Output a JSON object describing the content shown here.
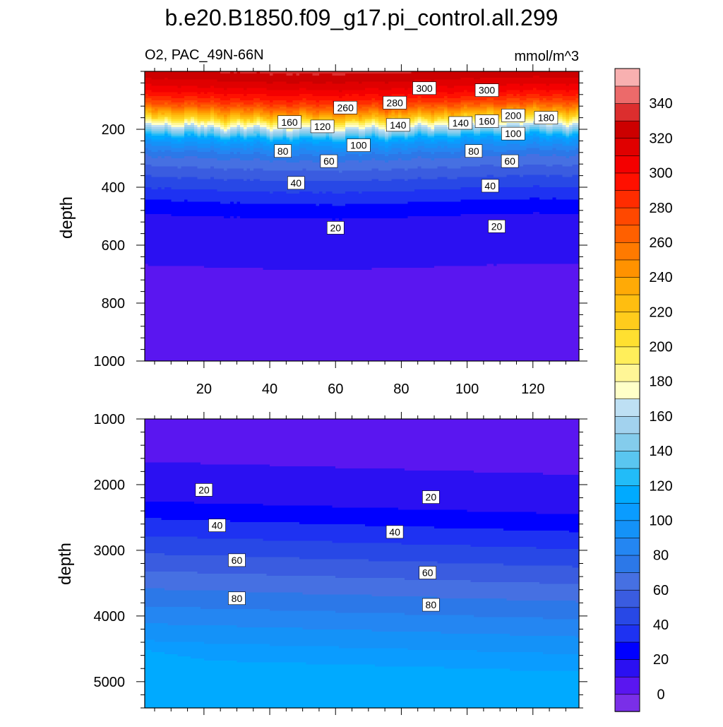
{
  "chart_data": {
    "type": "heatmap",
    "title": "b.e20.B1850.f09_g17.pi_control.all.299",
    "subtitle_left": "O2, PAC_49N-66N",
    "subtitle_right": "mmol/m^3",
    "xlabel": "",
    "ylabel": "depth",
    "x_range": [
      2,
      134
    ],
    "x_ticks": [
      20,
      40,
      60,
      80,
      100,
      120
    ],
    "grid": false,
    "legend": "right",
    "colorbar": {
      "levels": [
        -10,
        0,
        10,
        20,
        30,
        40,
        50,
        60,
        70,
        80,
        90,
        100,
        110,
        120,
        130,
        140,
        150,
        160,
        170,
        180,
        190,
        200,
        210,
        220,
        230,
        240,
        250,
        260,
        270,
        280,
        290,
        300,
        310,
        320,
        330,
        340,
        350,
        360
      ],
      "colors": [
        "#7a2fe8",
        "#5a16f0",
        "#2b10f2",
        "#0000ff",
        "#1e32f2",
        "#2848e6",
        "#3a5ce0",
        "#4670e2",
        "#2c78e8",
        "#2486f2",
        "#1492f8",
        "#0a9cff",
        "#00aaff",
        "#22bcf8",
        "#5ac6f0",
        "#84ccec",
        "#a2d2ee",
        "#bee0f4",
        "#ffffc8",
        "#fff696",
        "#ffee5a",
        "#ffe030",
        "#ffcc1c",
        "#ffbe10",
        "#ffaa06",
        "#ff9200",
        "#ff7a00",
        "#ff6000",
        "#ff4800",
        "#ff2c00",
        "#ff1000",
        "#f40000",
        "#e00000",
        "#cc0000",
        "#dc2e2e",
        "#ec6a6a",
        "#f8b0b0"
      ],
      "tick_labels": [
        "0",
        "20",
        "40",
        "60",
        "80",
        "100",
        "120",
        "140",
        "160",
        "180",
        "200",
        "220",
        "240",
        "260",
        "280",
        "300",
        "320",
        "340"
      ],
      "tick_values": [
        0,
        20,
        40,
        60,
        80,
        100,
        120,
        140,
        160,
        180,
        200,
        220,
        240,
        260,
        280,
        300,
        320,
        340
      ]
    },
    "panels": [
      {
        "id": "upper",
        "ylim": [
          0,
          1000
        ],
        "y_inverted": true,
        "y_ticks": [
          200,
          400,
          600,
          800,
          1000
        ],
        "y_tick_labels": [
          "200",
          "400",
          "600",
          "800",
          "1000"
        ],
        "x_tick_labels": [
          "20",
          "40",
          "60",
          "80",
          "100",
          "120"
        ],
        "profile_depth": [
          0,
          25,
          50,
          75,
          100,
          125,
          150,
          175,
          200,
          225,
          250,
          275,
          300,
          350,
          400,
          450,
          500,
          550,
          600,
          700,
          800,
          900,
          1000
        ],
        "profile_o2": [
          330,
          322,
          312,
          300,
          285,
          262,
          230,
          190,
          155,
          120,
          98,
          82,
          70,
          55,
          42,
          30,
          20,
          16,
          13,
          9,
          6,
          4,
          3
        ],
        "contour_labels": [
          {
            "text": "300",
            "x": 87,
            "y": 58
          },
          {
            "text": "300",
            "x": 106,
            "y": 65
          },
          {
            "text": "260",
            "x": 63,
            "y": 125
          },
          {
            "text": "280",
            "x": 78,
            "y": 108
          },
          {
            "text": "160",
            "x": 46,
            "y": 175
          },
          {
            "text": "120",
            "x": 56,
            "y": 190
          },
          {
            "text": "140",
            "x": 79,
            "y": 185
          },
          {
            "text": "140",
            "x": 98,
            "y": 178
          },
          {
            "text": "160",
            "x": 106,
            "y": 172
          },
          {
            "text": "200",
            "x": 114,
            "y": 152
          },
          {
            "text": "180",
            "x": 124,
            "y": 160
          },
          {
            "text": "100",
            "x": 67,
            "y": 255
          },
          {
            "text": "100",
            "x": 114,
            "y": 215
          },
          {
            "text": "80",
            "x": 44,
            "y": 275
          },
          {
            "text": "80",
            "x": 102,
            "y": 275
          },
          {
            "text": "60",
            "x": 58,
            "y": 310
          },
          {
            "text": "60",
            "x": 113,
            "y": 310
          },
          {
            "text": "40",
            "x": 48,
            "y": 385
          },
          {
            "text": "40",
            "x": 107,
            "y": 395
          },
          {
            "text": "20",
            "x": 60,
            "y": 540
          },
          {
            "text": "20",
            "x": 109,
            "y": 535
          }
        ]
      },
      {
        "id": "lower",
        "ylim": [
          1000,
          5400
        ],
        "y_inverted": true,
        "y_ticks": [
          1000,
          2000,
          3000,
          4000,
          5000
        ],
        "y_tick_labels": [
          "1000",
          "2000",
          "3000",
          "4000",
          "5000"
        ],
        "contour_labels": [
          {
            "text": "20",
            "x": 20,
            "y": 2080
          },
          {
            "text": "20",
            "x": 89,
            "y": 2190
          },
          {
            "text": "40",
            "x": 24,
            "y": 2620
          },
          {
            "text": "40",
            "x": 78,
            "y": 2720
          },
          {
            "text": "60",
            "x": 30,
            "y": 3150
          },
          {
            "text": "60",
            "x": 88,
            "y": 3340
          },
          {
            "text": "80",
            "x": 30,
            "y": 3730
          },
          {
            "text": "80",
            "x": 89,
            "y": 3830
          }
        ]
      }
    ]
  }
}
